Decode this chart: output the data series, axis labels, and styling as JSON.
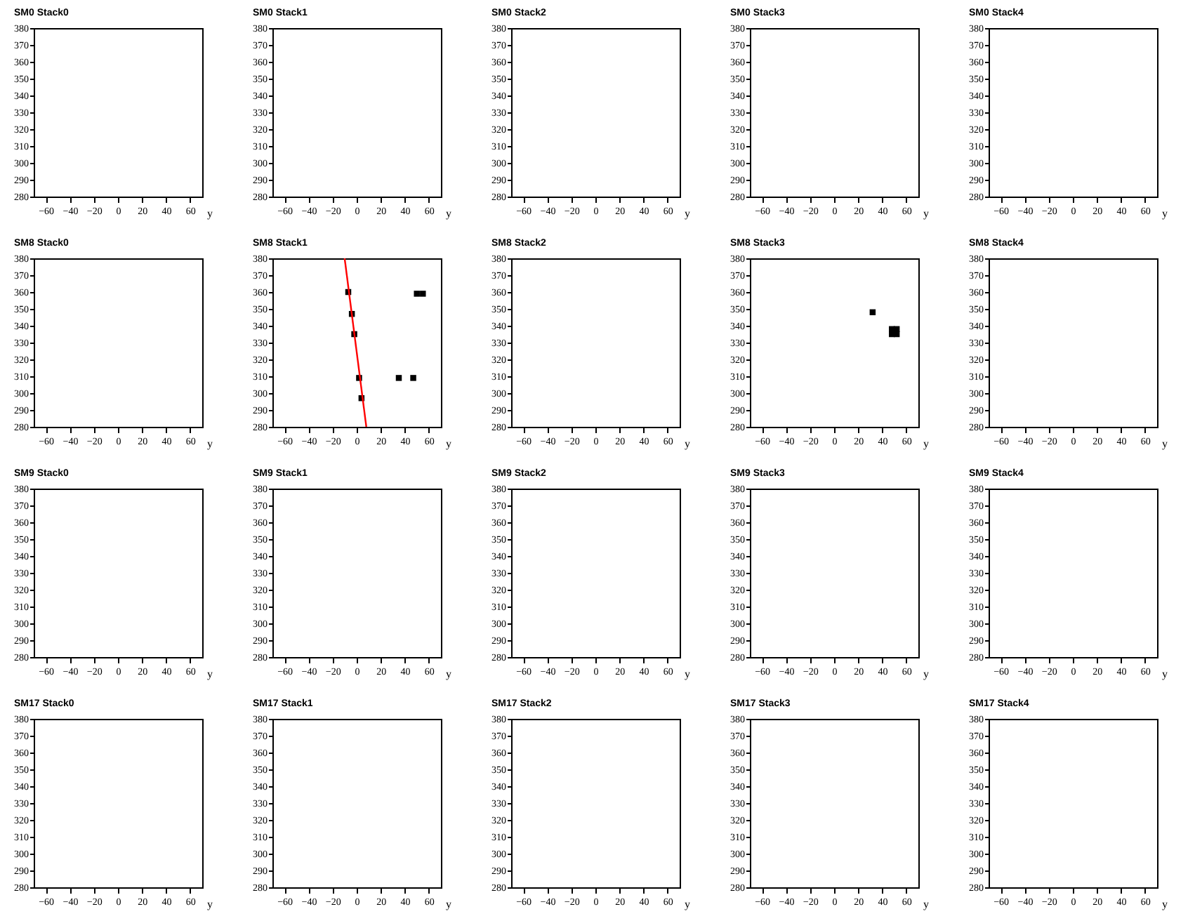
{
  "chart_data": [
    {
      "type": "scatter",
      "title": "SM0 Stack0",
      "xlabel": "y",
      "xlim": [
        -70,
        70
      ],
      "ylim": [
        280,
        380
      ],
      "xticks": [
        -60,
        -40,
        -20,
        0,
        20,
        40,
        60
      ],
      "yticks": [
        280,
        290,
        300,
        310,
        320,
        330,
        340,
        350,
        360,
        370,
        380
      ]
    },
    {
      "type": "scatter",
      "title": "SM0 Stack1",
      "xlabel": "y",
      "xlim": [
        -70,
        70
      ],
      "ylim": [
        280,
        380
      ],
      "xticks": [
        -60,
        -40,
        -20,
        0,
        20,
        40,
        60
      ],
      "yticks": [
        280,
        290,
        300,
        310,
        320,
        330,
        340,
        350,
        360,
        370,
        380
      ]
    },
    {
      "type": "scatter",
      "title": "SM0 Stack2",
      "xlabel": "y",
      "xlim": [
        -70,
        70
      ],
      "ylim": [
        280,
        380
      ],
      "xticks": [
        -60,
        -40,
        -20,
        0,
        20,
        40,
        60
      ],
      "yticks": [
        280,
        290,
        300,
        310,
        320,
        330,
        340,
        350,
        360,
        370,
        380
      ]
    },
    {
      "type": "scatter",
      "title": "SM0 Stack3",
      "xlabel": "y",
      "xlim": [
        -70,
        70
      ],
      "ylim": [
        280,
        380
      ],
      "xticks": [
        -60,
        -40,
        -20,
        0,
        20,
        40,
        60
      ],
      "yticks": [
        280,
        290,
        300,
        310,
        320,
        330,
        340,
        350,
        360,
        370,
        380
      ]
    },
    {
      "type": "scatter",
      "title": "SM0 Stack4",
      "xlabel": "y",
      "xlim": [
        -70,
        70
      ],
      "ylim": [
        280,
        380
      ],
      "xticks": [
        -60,
        -40,
        -20,
        0,
        20,
        40,
        60
      ],
      "yticks": [
        280,
        290,
        300,
        310,
        320,
        330,
        340,
        350,
        360,
        370,
        380
      ]
    },
    {
      "type": "scatter",
      "title": "SM8 Stack0",
      "xlabel": "y",
      "xlim": [
        -70,
        70
      ],
      "ylim": [
        280,
        380
      ],
      "xticks": [
        -60,
        -40,
        -20,
        0,
        20,
        40,
        60
      ],
      "yticks": [
        280,
        290,
        300,
        310,
        320,
        330,
        340,
        350,
        360,
        370,
        380
      ]
    },
    {
      "type": "scatter",
      "title": "SM8 Stack1",
      "xlabel": "y",
      "xlim": [
        -70,
        70
      ],
      "ylim": [
        280,
        380
      ],
      "xticks": [
        -60,
        -40,
        -20,
        0,
        20,
        40,
        60
      ],
      "yticks": [
        280,
        290,
        300,
        310,
        320,
        330,
        340,
        350,
        360,
        370,
        380
      ],
      "series": [
        {
          "type": "scatter",
          "marker": "square",
          "color": "#000000",
          "x": [
            -7,
            -4,
            -2,
            2,
            4,
            35,
            47,
            50,
            55
          ],
          "values": [
            360,
            347,
            335,
            309,
            297,
            309,
            309,
            359,
            359
          ]
        },
        {
          "type": "line",
          "color": "#ff0000",
          "x": [
            -10,
            8
          ],
          "values": [
            380,
            280
          ]
        }
      ]
    },
    {
      "type": "scatter",
      "title": "SM8 Stack2",
      "xlabel": "y",
      "xlim": [
        -70,
        70
      ],
      "ylim": [
        280,
        380
      ],
      "xticks": [
        -60,
        -40,
        -20,
        0,
        20,
        40,
        60
      ],
      "yticks": [
        280,
        290,
        300,
        310,
        320,
        330,
        340,
        350,
        360,
        370,
        380
      ]
    },
    {
      "type": "scatter",
      "title": "SM8 Stack3",
      "xlabel": "y",
      "xlim": [
        -70,
        70
      ],
      "ylim": [
        280,
        380
      ],
      "xticks": [
        -60,
        -40,
        -20,
        0,
        20,
        40,
        60
      ],
      "yticks": [
        280,
        290,
        300,
        310,
        320,
        330,
        340,
        350,
        360,
        370,
        380
      ],
      "series": [
        {
          "type": "scatter",
          "marker": "square",
          "color": "#000000",
          "x": [
            32,
            48,
            52,
            48,
            52
          ],
          "values": [
            348,
            338,
            338,
            335,
            335
          ]
        }
      ]
    },
    {
      "type": "scatter",
      "title": "SM8 Stack4",
      "xlabel": "y",
      "xlim": [
        -70,
        70
      ],
      "ylim": [
        280,
        380
      ],
      "xticks": [
        -60,
        -40,
        -20,
        0,
        20,
        40,
        60
      ],
      "yticks": [
        280,
        290,
        300,
        310,
        320,
        330,
        340,
        350,
        360,
        370,
        380
      ]
    },
    {
      "type": "scatter",
      "title": "SM9 Stack0",
      "xlabel": "y",
      "xlim": [
        -70,
        70
      ],
      "ylim": [
        280,
        380
      ],
      "xticks": [
        -60,
        -40,
        -20,
        0,
        20,
        40,
        60
      ],
      "yticks": [
        280,
        290,
        300,
        310,
        320,
        330,
        340,
        350,
        360,
        370,
        380
      ]
    },
    {
      "type": "scatter",
      "title": "SM9 Stack1",
      "xlabel": "y",
      "xlim": [
        -70,
        70
      ],
      "ylim": [
        280,
        380
      ],
      "xticks": [
        -60,
        -40,
        -20,
        0,
        20,
        40,
        60
      ],
      "yticks": [
        280,
        290,
        300,
        310,
        320,
        330,
        340,
        350,
        360,
        370,
        380
      ]
    },
    {
      "type": "scatter",
      "title": "SM9 Stack2",
      "xlabel": "y",
      "xlim": [
        -70,
        70
      ],
      "ylim": [
        280,
        380
      ],
      "xticks": [
        -60,
        -40,
        -20,
        0,
        20,
        40,
        60
      ],
      "yticks": [
        280,
        290,
        300,
        310,
        320,
        330,
        340,
        350,
        360,
        370,
        380
      ]
    },
    {
      "type": "scatter",
      "title": "SM9 Stack3",
      "xlabel": "y",
      "xlim": [
        -70,
        70
      ],
      "ylim": [
        280,
        380
      ],
      "xticks": [
        -60,
        -40,
        -20,
        0,
        20,
        40,
        60
      ],
      "yticks": [
        280,
        290,
        300,
        310,
        320,
        330,
        340,
        350,
        360,
        370,
        380
      ]
    },
    {
      "type": "scatter",
      "title": "SM9 Stack4",
      "xlabel": "y",
      "xlim": [
        -70,
        70
      ],
      "ylim": [
        280,
        380
      ],
      "xticks": [
        -60,
        -40,
        -20,
        0,
        20,
        40,
        60
      ],
      "yticks": [
        280,
        290,
        300,
        310,
        320,
        330,
        340,
        350,
        360,
        370,
        380
      ]
    },
    {
      "type": "scatter",
      "title": "SM17 Stack0",
      "xlabel": "y",
      "xlim": [
        -70,
        70
      ],
      "ylim": [
        280,
        380
      ],
      "xticks": [
        -60,
        -40,
        -20,
        0,
        20,
        40,
        60
      ],
      "yticks": [
        280,
        290,
        300,
        310,
        320,
        330,
        340,
        350,
        360,
        370,
        380
      ]
    },
    {
      "type": "scatter",
      "title": "SM17 Stack1",
      "xlabel": "y",
      "xlim": [
        -70,
        70
      ],
      "ylim": [
        280,
        380
      ],
      "xticks": [
        -60,
        -40,
        -20,
        0,
        20,
        40,
        60
      ],
      "yticks": [
        280,
        290,
        300,
        310,
        320,
        330,
        340,
        350,
        360,
        370,
        380
      ]
    },
    {
      "type": "scatter",
      "title": "SM17 Stack2",
      "xlabel": "y",
      "xlim": [
        -70,
        70
      ],
      "ylim": [
        280,
        380
      ],
      "xticks": [
        -60,
        -40,
        -20,
        0,
        20,
        40,
        60
      ],
      "yticks": [
        280,
        290,
        300,
        310,
        320,
        330,
        340,
        350,
        360,
        370,
        380
      ]
    },
    {
      "type": "scatter",
      "title": "SM17 Stack3",
      "xlabel": "y",
      "xlim": [
        -70,
        70
      ],
      "ylim": [
        280,
        380
      ],
      "xticks": [
        -60,
        -40,
        -20,
        0,
        20,
        40,
        60
      ],
      "yticks": [
        280,
        290,
        300,
        310,
        320,
        330,
        340,
        350,
        360,
        370,
        380
      ]
    },
    {
      "type": "scatter",
      "title": "SM17 Stack4",
      "xlabel": "y",
      "xlim": [
        -70,
        70
      ],
      "ylim": [
        280,
        380
      ],
      "xticks": [
        -60,
        -40,
        -20,
        0,
        20,
        40,
        60
      ],
      "yticks": [
        280,
        290,
        300,
        310,
        320,
        330,
        340,
        350,
        360,
        370,
        380
      ]
    }
  ]
}
